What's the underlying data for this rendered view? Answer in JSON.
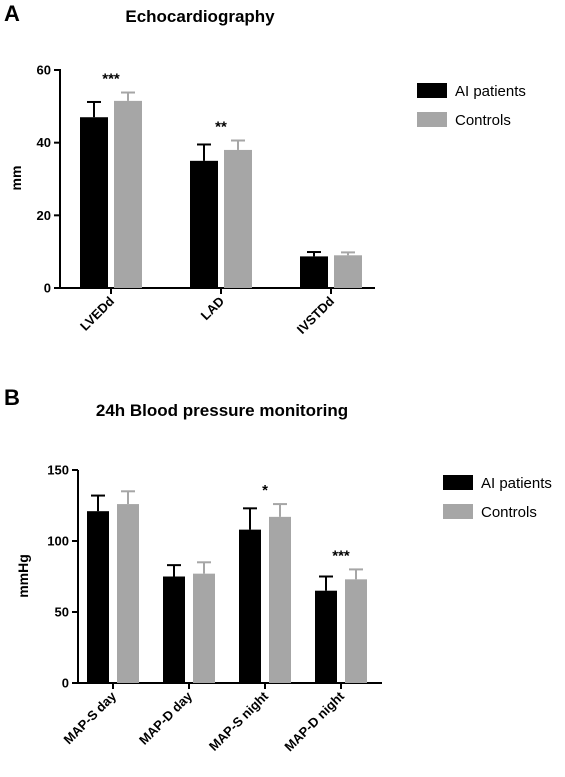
{
  "chart_data": [
    {
      "type": "bar",
      "panel": "A",
      "title": "Echocardiography",
      "xlabel": "",
      "ylabel": "mm",
      "ylim": [
        0,
        60
      ],
      "yticks": [
        "0",
        "20",
        "40",
        "60"
      ],
      "categories": [
        "LVEDd",
        "LAD",
        "IVSTDd"
      ],
      "series": [
        {
          "name": "AI patients",
          "color": "#000000",
          "values": [
            47,
            35,
            8.7
          ],
          "errors": [
            4.2,
            4.5,
            1.2
          ]
        },
        {
          "name": "Controls",
          "color": "#a6a6a6",
          "values": [
            51.5,
            38,
            9
          ],
          "errors": [
            2.3,
            2.6,
            0.8
          ]
        }
      ],
      "significance": [
        "***",
        "**",
        ""
      ],
      "legend": "right",
      "grid": false
    },
    {
      "type": "bar",
      "panel": "B",
      "title": "24h Blood pressure monitoring",
      "xlabel": "",
      "ylabel": "mmHg",
      "ylim": [
        0,
        150
      ],
      "yticks": [
        "0",
        "50",
        "100",
        "150"
      ],
      "categories": [
        "MAP-S day",
        "MAP-D day",
        "MAP-S night",
        "MAP-D night"
      ],
      "series": [
        {
          "name": "AI patients",
          "color": "#000000",
          "values": [
            121,
            75,
            108,
            65
          ],
          "errors": [
            11,
            8,
            15,
            10
          ]
        },
        {
          "name": "Controls",
          "color": "#a6a6a6",
          "values": [
            126,
            77,
            117,
            73
          ],
          "errors": [
            9,
            8,
            9,
            7
          ]
        }
      ],
      "significance": [
        "",
        "",
        "*",
        "***"
      ],
      "legend": "right",
      "grid": false
    }
  ]
}
